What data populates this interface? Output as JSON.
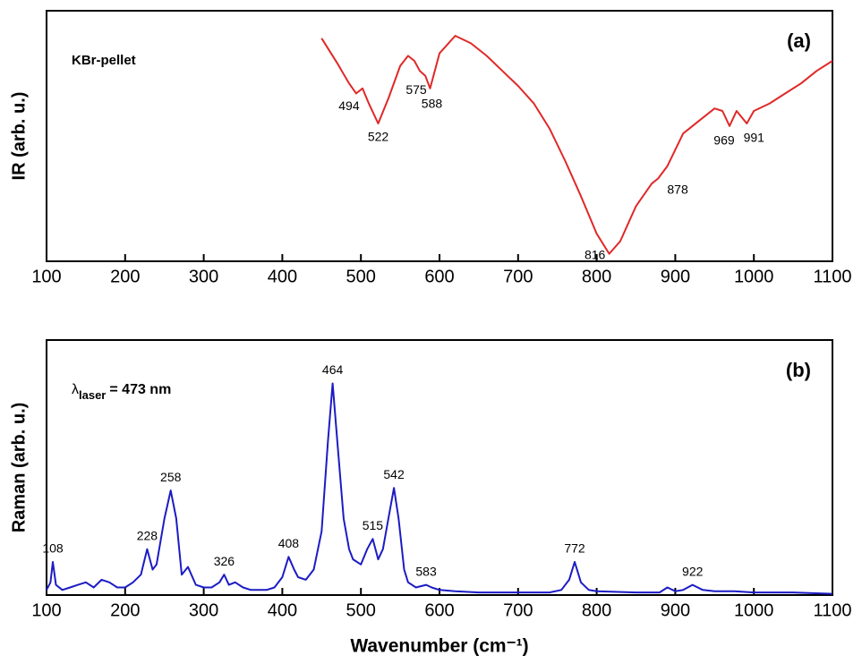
{
  "chart_data": [
    {
      "type": "line",
      "panel_label": "(a)",
      "note": "KBr-pellet",
      "y_label": "IR (arb. u.)",
      "color": "#e02828",
      "xlim": [
        100,
        1100
      ],
      "xticks": [
        100,
        200,
        300,
        400,
        500,
        600,
        700,
        800,
        900,
        1000,
        1100
      ],
      "ylim": [
        0,
        100
      ],
      "x": [
        450,
        470,
        485,
        494,
        502,
        510,
        522,
        535,
        550,
        560,
        568,
        575,
        582,
        588,
        600,
        620,
        640,
        660,
        680,
        700,
        720,
        740,
        760,
        780,
        800,
        816,
        830,
        850,
        870,
        878,
        890,
        910,
        930,
        950,
        960,
        969,
        978,
        991,
        1000,
        1020,
        1040,
        1060,
        1080,
        1100
      ],
      "values": [
        89,
        79,
        71,
        67,
        69,
        63,
        55,
        65,
        78,
        82,
        80,
        76,
        74,
        69,
        83,
        90,
        87,
        82,
        76,
        70,
        63,
        53,
        40,
        26,
        11,
        3,
        8,
        22,
        31,
        33,
        38,
        51,
        56,
        61,
        60,
        54,
        60,
        55,
        60,
        63,
        67,
        71,
        76,
        80
      ],
      "annotations": [
        {
          "text": "494",
          "x": 494,
          "y": 67
        },
        {
          "text": "522",
          "x": 522,
          "y": 55
        },
        {
          "text": "575",
          "x": 575,
          "y": 76
        },
        {
          "text": "588",
          "x": 588,
          "y": 69
        },
        {
          "text": "816",
          "x": 816,
          "y": 3
        },
        {
          "text": "878",
          "x": 878,
          "y": 33
        },
        {
          "text": "969",
          "x": 969,
          "y": 54
        },
        {
          "text": "991",
          "x": 991,
          "y": 55
        }
      ]
    },
    {
      "type": "line",
      "panel_label": "(b)",
      "laser_label": {
        "symbol": "λ",
        "sub": "laser",
        "text": "= 473 nm"
      },
      "y_label": "Raman (arb. u.)",
      "x_label": "Wavenumber (cm⁻¹)",
      "color": "#1c1cc4",
      "xlim": [
        100,
        1100
      ],
      "xticks": [
        100,
        200,
        300,
        400,
        500,
        600,
        700,
        800,
        900,
        1000,
        1100
      ],
      "ylim": [
        0,
        100
      ],
      "x": [
        100,
        105,
        108,
        112,
        120,
        130,
        140,
        150,
        160,
        170,
        180,
        190,
        200,
        210,
        220,
        228,
        235,
        240,
        250,
        258,
        265,
        272,
        280,
        290,
        300,
        310,
        320,
        326,
        332,
        340,
        350,
        360,
        370,
        380,
        390,
        400,
        408,
        415,
        420,
        430,
        440,
        450,
        458,
        464,
        470,
        478,
        485,
        490,
        500,
        508,
        515,
        522,
        528,
        535,
        542,
        548,
        555,
        560,
        570,
        583,
        590,
        600,
        620,
        650,
        700,
        740,
        755,
        765,
        772,
        780,
        790,
        800,
        850,
        880,
        890,
        900,
        910,
        922,
        935,
        950,
        975,
        1000,
        1050,
        1100
      ],
      "values": [
        2,
        5,
        13,
        4,
        2,
        3,
        4,
        5,
        3,
        6,
        5,
        3,
        3,
        5,
        8,
        18,
        10,
        12,
        30,
        41,
        30,
        8,
        11,
        4,
        3,
        3,
        5,
        8,
        4,
        5,
        3,
        2,
        2,
        2,
        3,
        7,
        15,
        10,
        7,
        6,
        10,
        25,
        60,
        83,
        60,
        30,
        18,
        14,
        12,
        18,
        22,
        14,
        18,
        30,
        42,
        30,
        10,
        5,
        3,
        4,
        3,
        2,
        1.5,
        1,
        1,
        1,
        2,
        6,
        13,
        5,
        2,
        1.5,
        1,
        1,
        3,
        1.5,
        2,
        4,
        2,
        1.5,
        1.5,
        1,
        1,
        0.5
      ],
      "annotations": [
        {
          "text": "108",
          "x": 108,
          "y": 13
        },
        {
          "text": "228",
          "x": 228,
          "y": 18
        },
        {
          "text": "258",
          "x": 258,
          "y": 41
        },
        {
          "text": "326",
          "x": 326,
          "y": 8
        },
        {
          "text": "408",
          "x": 408,
          "y": 15
        },
        {
          "text": "464",
          "x": 464,
          "y": 83
        },
        {
          "text": "515",
          "x": 515,
          "y": 22
        },
        {
          "text": "542",
          "x": 542,
          "y": 42
        },
        {
          "text": "583",
          "x": 583,
          "y": 4
        },
        {
          "text": "772",
          "x": 772,
          "y": 13
        },
        {
          "text": "922",
          "x": 922,
          "y": 4
        }
      ]
    }
  ]
}
